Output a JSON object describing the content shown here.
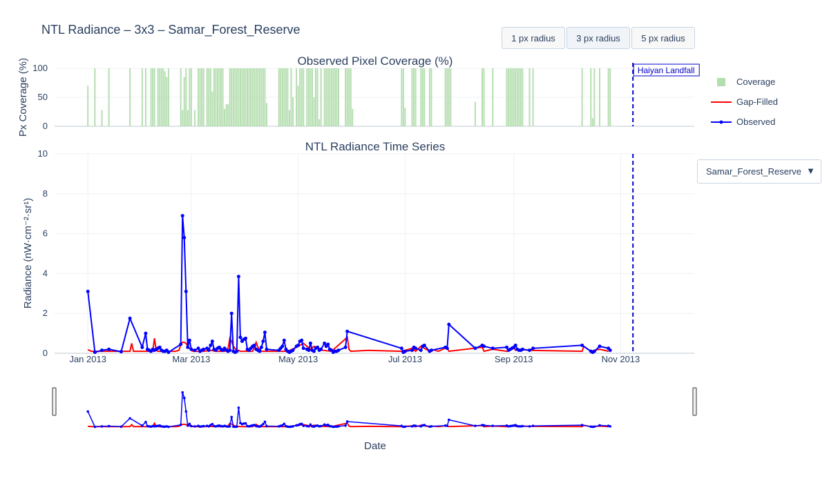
{
  "title": "NTL Radiance – 3x3 – Samar_Forest_Reserve",
  "buttons": [
    {
      "label": "1 px radius",
      "active": false
    },
    {
      "label": "3 px radius",
      "active": true
    },
    {
      "label": "5 px radius",
      "active": false
    }
  ],
  "dropdown": {
    "selected": "Samar_Forest_Reserve",
    "caret": "▼"
  },
  "legend": [
    {
      "label": "Coverage",
      "color": "#b5deb0",
      "kind": "bar"
    },
    {
      "label": "Gap-Filled",
      "color": "#ff0000",
      "kind": "line"
    },
    {
      "label": "Observed",
      "color": "#0000ff",
      "kind": "line-marker"
    }
  ],
  "colors": {
    "coverage": "#b5deb0",
    "gapfilled": "#ff0000",
    "observed": "#0000ff",
    "event": "#0000cc"
  },
  "chart_data": [
    {
      "type": "bar",
      "title": "Observed Pixel Coverage (%)",
      "ylabel": "Px Coverage (%)",
      "ylim": [
        0,
        100
      ],
      "yticks": [
        0,
        50,
        100
      ],
      "x": [
        "2013-01-01",
        "2013-01-05",
        "2013-01-09",
        "2013-01-13",
        "2013-01-25",
        "2013-02-01",
        "2013-02-03",
        "2013-02-06",
        "2013-02-07",
        "2013-02-08",
        "2013-02-10",
        "2013-02-11",
        "2013-02-12",
        "2013-02-13",
        "2013-02-14",
        "2013-02-15",
        "2013-02-16",
        "2013-02-23",
        "2013-02-24",
        "2013-02-25",
        "2013-02-26",
        "2013-02-27",
        "2013-02-28",
        "2013-03-01",
        "2013-03-03",
        "2013-03-05",
        "2013-03-06",
        "2013-03-07",
        "2013-03-08",
        "2013-03-10",
        "2013-03-11",
        "2013-03-12",
        "2013-03-13",
        "2013-03-14",
        "2013-03-15",
        "2013-03-16",
        "2013-03-17",
        "2013-03-18",
        "2013-03-19",
        "2013-03-20",
        "2013-03-21",
        "2013-03-22",
        "2013-03-23",
        "2013-03-24",
        "2013-03-25",
        "2013-03-26",
        "2013-03-27",
        "2013-03-28",
        "2013-03-29",
        "2013-03-30",
        "2013-03-31",
        "2013-04-01",
        "2013-04-02",
        "2013-04-03",
        "2013-04-04",
        "2013-04-05",
        "2013-04-06",
        "2013-04-07",
        "2013-04-08",
        "2013-04-09",
        "2013-04-10",
        "2013-04-11",
        "2013-04-12",
        "2013-04-13",
        "2013-04-20",
        "2013-04-21",
        "2013-04-22",
        "2013-04-23",
        "2013-04-24",
        "2013-04-25",
        "2013-04-26",
        "2013-04-27",
        "2013-04-28",
        "2013-04-30",
        "2013-05-01",
        "2013-05-02",
        "2013-05-03",
        "2013-05-04",
        "2013-05-06",
        "2013-05-07",
        "2013-05-08",
        "2013-05-09",
        "2013-05-10",
        "2013-05-11",
        "2013-05-12",
        "2013-05-13",
        "2013-05-14",
        "2013-05-16",
        "2013-05-17",
        "2013-05-18",
        "2013-05-19",
        "2013-05-20",
        "2013-05-21",
        "2013-05-22",
        "2013-05-23",
        "2013-05-24",
        "2013-05-28",
        "2013-05-29",
        "2013-05-30",
        "2013-05-31",
        "2013-06-01",
        "2013-06-29",
        "2013-06-30",
        "2013-07-01",
        "2013-07-05",
        "2013-07-06",
        "2013-07-07",
        "2013-07-10",
        "2013-07-11",
        "2013-07-12",
        "2013-07-15",
        "2013-07-16",
        "2013-07-24",
        "2013-07-25",
        "2013-07-26",
        "2013-07-27",
        "2013-08-10",
        "2013-08-14",
        "2013-08-15",
        "2013-08-20",
        "2013-08-28",
        "2013-08-29",
        "2013-08-30",
        "2013-08-31",
        "2013-09-01",
        "2013-09-02",
        "2013-09-03",
        "2013-09-04",
        "2013-09-05",
        "2013-09-06",
        "2013-09-10",
        "2013-09-12",
        "2013-10-10",
        "2013-10-15",
        "2013-10-16",
        "2013-10-17",
        "2013-10-20",
        "2013-10-25",
        "2013-10-26"
      ],
      "values": [
        70,
        100,
        28,
        100,
        100,
        100,
        100,
        100,
        100,
        100,
        100,
        100,
        100,
        100,
        95,
        85,
        100,
        100,
        28,
        85,
        100,
        28,
        100,
        100,
        28,
        100,
        100,
        100,
        100,
        100,
        100,
        100,
        60,
        100,
        100,
        100,
        100,
        100,
        100,
        30,
        38,
        38,
        100,
        100,
        100,
        100,
        100,
        100,
        100,
        100,
        100,
        100,
        100,
        100,
        100,
        100,
        100,
        100,
        100,
        100,
        100,
        100,
        100,
        40,
        100,
        100,
        100,
        100,
        100,
        100,
        28,
        100,
        50,
        100,
        70,
        100,
        100,
        100,
        100,
        100,
        100,
        100,
        50,
        100,
        100,
        12,
        100,
        100,
        100,
        100,
        100,
        100,
        100,
        100,
        100,
        100,
        100,
        100,
        100,
        100,
        30,
        100,
        100,
        32,
        100,
        100,
        100,
        100,
        100,
        100,
        100,
        100,
        100,
        100,
        100,
        100,
        42,
        100,
        100,
        100,
        100,
        100,
        100,
        100,
        100,
        100,
        100,
        100,
        100,
        100,
        100,
        100,
        100,
        100,
        14,
        100,
        100,
        100,
        100
      ],
      "annotation": {
        "label": "Haiyan Landfall",
        "x": "2013-11-08"
      }
    },
    {
      "type": "line",
      "title": "NTL Radiance Time Series",
      "xlabel": "Date",
      "ylabel": "Radiance (nW·cm⁻²·sr¹)",
      "ylim": [
        0,
        10
      ],
      "yticks": [
        0,
        2,
        4,
        6,
        8,
        10
      ],
      "xticks": [
        {
          "date": "2013-01-01",
          "label": "Jan 2013"
        },
        {
          "date": "2013-03-01",
          "label": "Mar 2013"
        },
        {
          "date": "2013-05-01",
          "label": "May 2013"
        },
        {
          "date": "2013-07-01",
          "label": "Jul 2013"
        },
        {
          "date": "2013-09-01",
          "label": "Sep 2013"
        },
        {
          "date": "2013-11-01",
          "label": "Nov 2013"
        }
      ],
      "xrange": [
        "2013-01-01",
        "2013-11-08"
      ],
      "series": [
        {
          "name": "Gap-Filled",
          "x": [
            "2013-01-01",
            "2013-01-03",
            "2013-01-20",
            "2013-01-25",
            "2013-01-26",
            "2013-01-27",
            "2013-02-07",
            "2013-02-08",
            "2013-02-09",
            "2013-02-10",
            "2013-02-20",
            "2013-02-22",
            "2013-02-23",
            "2013-02-24",
            "2013-02-25",
            "2013-02-26",
            "2013-02-27",
            "2013-02-28",
            "2013-03-01",
            "2013-03-02",
            "2013-03-05",
            "2013-03-08",
            "2013-03-12",
            "2013-03-15",
            "2013-03-20",
            "2013-03-22",
            "2013-03-23",
            "2013-03-24",
            "2013-03-25",
            "2013-03-26",
            "2013-03-27",
            "2013-03-28",
            "2013-03-29",
            "2013-04-05",
            "2013-04-07",
            "2013-04-08",
            "2013-04-10",
            "2013-04-12",
            "2013-04-25",
            "2013-04-30",
            "2013-05-04",
            "2013-05-08",
            "2013-05-10",
            "2013-05-15",
            "2013-05-20",
            "2013-05-29",
            "2013-05-30",
            "2013-05-31",
            "2013-06-10",
            "2013-06-29",
            "2013-07-05",
            "2013-07-07",
            "2013-07-10",
            "2013-07-15",
            "2013-07-16",
            "2013-07-20",
            "2013-07-25",
            "2013-07-26",
            "2013-08-14",
            "2013-08-15",
            "2013-08-20",
            "2013-08-28",
            "2013-09-01",
            "2013-09-02",
            "2013-09-04",
            "2013-09-10",
            "2013-10-10",
            "2013-10-11",
            "2013-10-15",
            "2013-10-20",
            "2013-10-25"
          ],
          "values": [
            0.18,
            0.1,
            0.1,
            0.1,
            0.5,
            0.1,
            0.1,
            0.75,
            0.15,
            0.1,
            0.1,
            0.15,
            0.45,
            0.55,
            0.55,
            0.5,
            0.35,
            0.25,
            0.15,
            0.1,
            0.1,
            0.1,
            0.15,
            0.1,
            0.1,
            0.25,
            0.75,
            0.6,
            0.35,
            0.25,
            0.1,
            0.15,
            0.1,
            0.1,
            0.55,
            0.3,
            0.1,
            0.1,
            0.1,
            0.3,
            0.5,
            0.2,
            0.35,
            0.15,
            0.1,
            0.8,
            0.2,
            0.1,
            0.15,
            0.1,
            0.25,
            0.1,
            0.35,
            0.1,
            0.2,
            0.1,
            0.3,
            0.1,
            0.3,
            0.1,
            0.2,
            0.1,
            0.3,
            0.15,
            0.2,
            0.15,
            0.1,
            0.35,
            0.1,
            0.2,
            0.1
          ]
        },
        {
          "name": "Observed",
          "x": [
            "2013-01-01",
            "2013-01-05",
            "2013-01-09",
            "2013-01-13",
            "2013-01-20",
            "2013-01-25",
            "2013-02-01",
            "2013-02-03",
            "2013-02-04",
            "2013-02-05",
            "2013-02-06",
            "2013-02-07",
            "2013-02-08",
            "2013-02-09",
            "2013-02-10",
            "2013-02-11",
            "2013-02-12",
            "2013-02-13",
            "2013-02-14",
            "2013-02-15",
            "2013-02-16",
            "2013-02-23",
            "2013-02-24",
            "2013-02-25",
            "2013-02-26",
            "2013-02-27",
            "2013-02-28",
            "2013-03-01",
            "2013-03-03",
            "2013-03-05",
            "2013-03-06",
            "2013-03-07",
            "2013-03-08",
            "2013-03-10",
            "2013-03-11",
            "2013-03-12",
            "2013-03-13",
            "2013-03-14",
            "2013-03-15",
            "2013-03-16",
            "2013-03-17",
            "2013-03-18",
            "2013-03-19",
            "2013-03-20",
            "2013-03-21",
            "2013-03-22",
            "2013-03-23",
            "2013-03-24",
            "2013-03-25",
            "2013-03-26",
            "2013-03-27",
            "2013-03-28",
            "2013-03-29",
            "2013-03-30",
            "2013-03-31",
            "2013-04-01",
            "2013-04-02",
            "2013-04-03",
            "2013-04-04",
            "2013-04-05",
            "2013-04-06",
            "2013-04-07",
            "2013-04-08",
            "2013-04-09",
            "2013-04-10",
            "2013-04-11",
            "2013-04-12",
            "2013-04-13",
            "2013-04-20",
            "2013-04-21",
            "2013-04-22",
            "2013-04-23",
            "2013-04-24",
            "2013-04-25",
            "2013-04-26",
            "2013-04-27",
            "2013-04-28",
            "2013-04-30",
            "2013-05-01",
            "2013-05-02",
            "2013-05-03",
            "2013-05-04",
            "2013-05-06",
            "2013-05-07",
            "2013-05-08",
            "2013-05-09",
            "2013-05-10",
            "2013-05-11",
            "2013-05-12",
            "2013-05-13",
            "2013-05-14",
            "2013-05-16",
            "2013-05-17",
            "2013-05-18",
            "2013-05-19",
            "2013-05-20",
            "2013-05-21",
            "2013-05-22",
            "2013-05-23",
            "2013-05-24",
            "2013-05-28",
            "2013-05-29",
            "2013-06-29",
            "2013-06-30",
            "2013-07-01",
            "2013-07-05",
            "2013-07-06",
            "2013-07-07",
            "2013-07-10",
            "2013-07-11",
            "2013-07-12",
            "2013-07-15",
            "2013-07-16",
            "2013-07-24",
            "2013-07-25",
            "2013-07-26",
            "2013-08-10",
            "2013-08-14",
            "2013-08-15",
            "2013-08-20",
            "2013-08-28",
            "2013-08-29",
            "2013-08-30",
            "2013-08-31",
            "2013-09-01",
            "2013-09-02",
            "2013-09-03",
            "2013-09-04",
            "2013-09-05",
            "2013-09-06",
            "2013-09-10",
            "2013-09-12",
            "2013-10-10",
            "2013-10-15",
            "2013-10-16",
            "2013-10-17",
            "2013-10-20",
            "2013-10-25",
            "2013-10-26"
          ],
          "values": [
            3.1,
            0.05,
            0.15,
            0.2,
            0.08,
            1.75,
            0.3,
            1.0,
            0.2,
            0.15,
            0.1,
            0.2,
            0.15,
            0.2,
            0.25,
            0.3,
            0.15,
            0.1,
            0.1,
            0.15,
            0.05,
            0.45,
            6.9,
            5.8,
            3.1,
            0.3,
            0.65,
            0.2,
            0.15,
            0.25,
            0.1,
            0.15,
            0.2,
            0.25,
            0.15,
            0.4,
            0.6,
            0.2,
            0.15,
            0.25,
            0.3,
            0.2,
            0.15,
            0.25,
            0.15,
            0.1,
            0.15,
            2.0,
            0.1,
            0.05,
            0.1,
            3.85,
            0.8,
            0.6,
            0.7,
            0.75,
            0.2,
            0.15,
            0.25,
            0.35,
            0.4,
            0.2,
            0.15,
            0.1,
            0.3,
            0.6,
            1.05,
            0.2,
            0.15,
            0.25,
            0.35,
            0.65,
            0.2,
            0.1,
            0.05,
            0.1,
            0.15,
            0.35,
            0.4,
            0.6,
            0.65,
            0.25,
            0.2,
            0.15,
            0.5,
            0.15,
            0.1,
            0.25,
            0.3,
            0.15,
            0.2,
            0.5,
            0.35,
            0.45,
            0.2,
            0.15,
            0.05,
            0.1,
            0.1,
            0.15,
            0.3,
            1.1,
            0.25,
            0.05,
            0.1,
            0.15,
            0.3,
            0.25,
            0.15,
            0.35,
            0.4,
            0.1,
            0.15,
            0.3,
            0.25,
            1.45,
            0.25,
            0.4,
            0.35,
            0.25,
            0.3,
            0.15,
            0.2,
            0.25,
            0.3,
            0.4,
            0.2,
            0.15,
            0.15,
            0.2,
            0.15,
            0.25,
            0.4,
            0.1,
            0.05,
            0.1,
            0.35,
            0.25,
            0.15
          ],
          "markers": true
        }
      ],
      "event_line": {
        "label": "Haiyan Landfall",
        "x": "2013-11-08"
      }
    }
  ]
}
